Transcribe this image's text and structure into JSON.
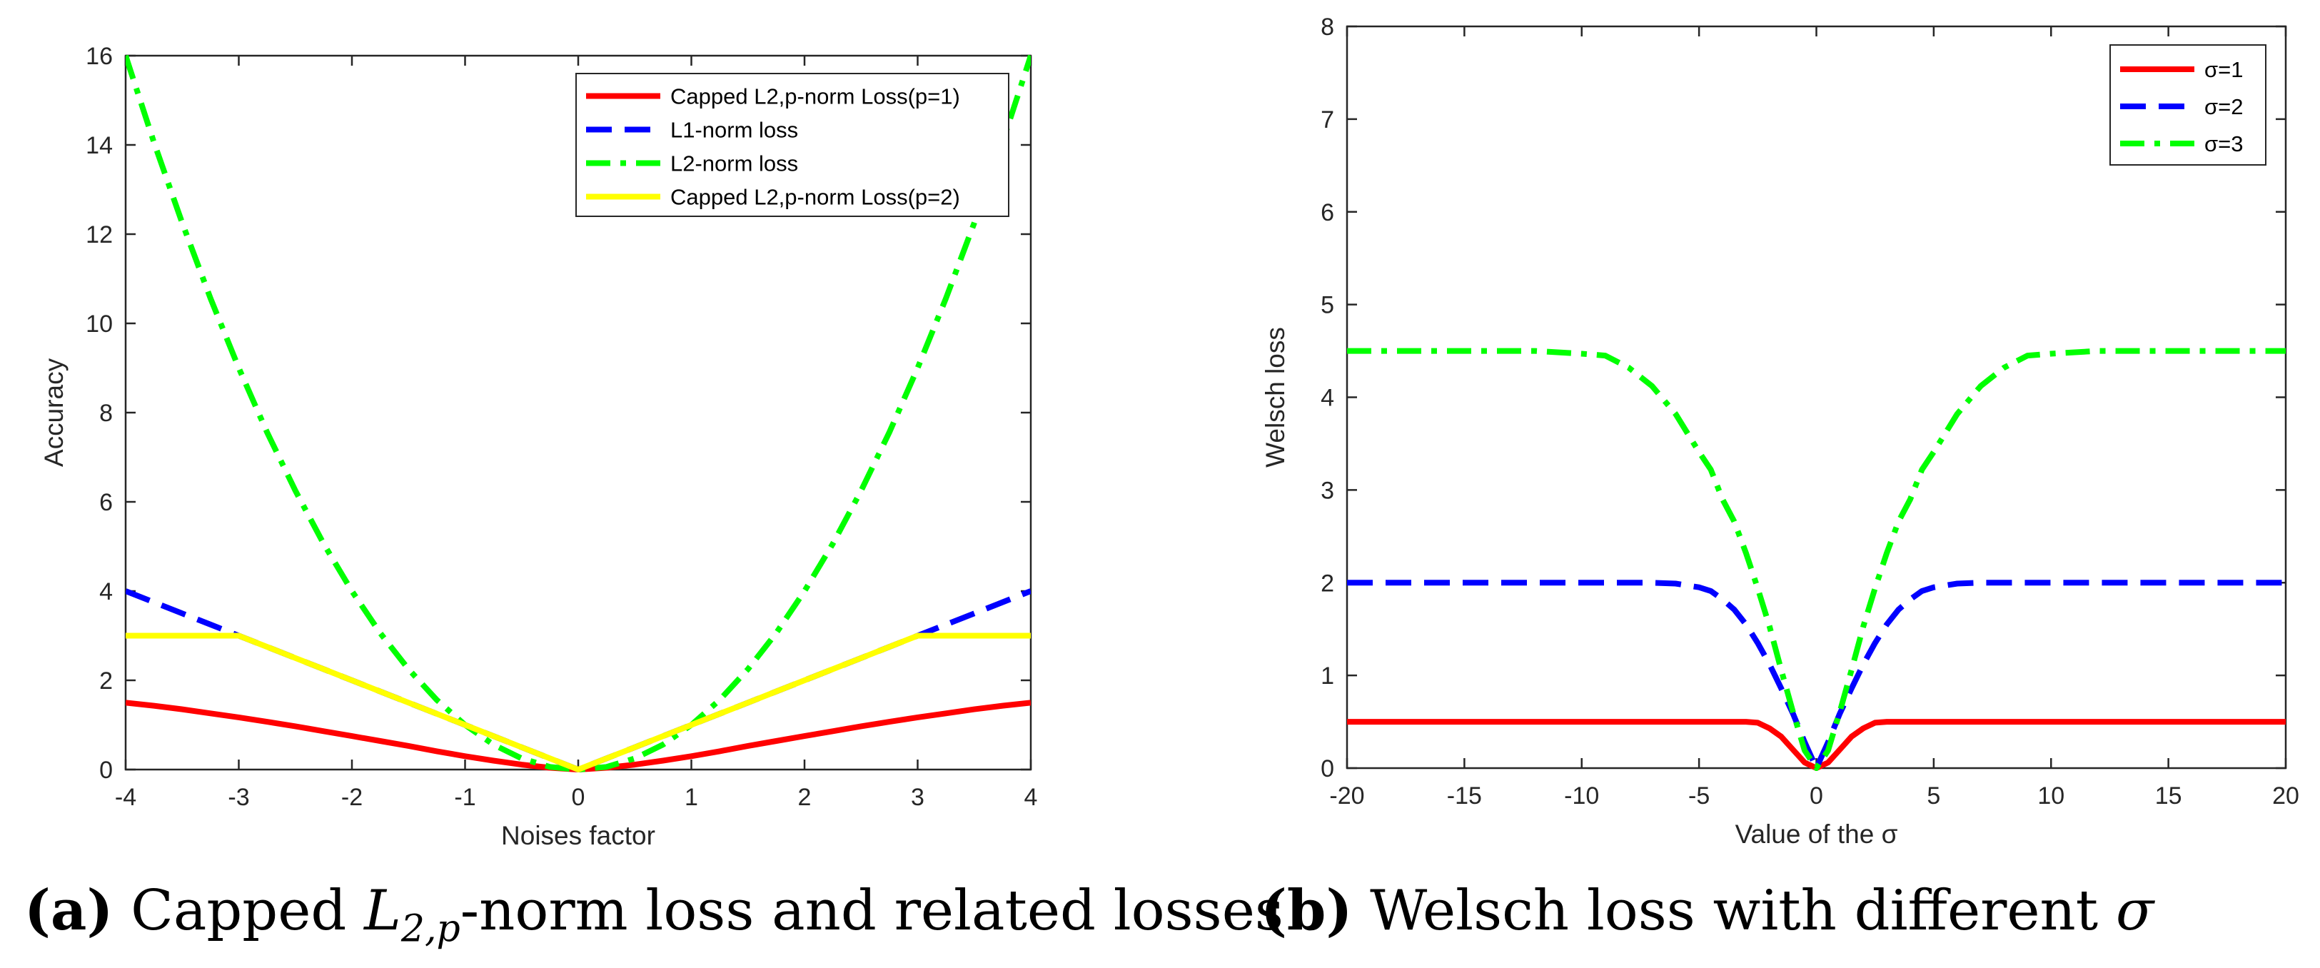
{
  "chart_data": [
    {
      "type": "line",
      "title": "",
      "xlabel": "Noises factor",
      "ylabel": "Accuracy",
      "xlim": [
        -4,
        4
      ],
      "ylim": [
        0,
        16
      ],
      "xticks": [
        -4,
        -3,
        -2,
        -1,
        0,
        1,
        2,
        3,
        4
      ],
      "yticks": [
        0,
        2,
        4,
        6,
        8,
        10,
        12,
        14,
        16
      ],
      "xtick_labels": [
        "-4",
        "-3",
        "-2",
        "-1",
        "0",
        "1",
        "2",
        "3",
        "4"
      ],
      "ytick_labels": [
        "0",
        "2",
        "4",
        "6",
        "8",
        "10",
        "12",
        "14",
        "16"
      ],
      "grid": false,
      "legend_position": "top-right",
      "x": [
        -4,
        -3.75,
        -3.5,
        -3.25,
        -3,
        -2.75,
        -2.5,
        -2.25,
        -2,
        -1.75,
        -1.5,
        -1.25,
        -1,
        -0.75,
        -0.5,
        -0.25,
        0,
        0.25,
        0.5,
        0.75,
        1,
        1.25,
        1.5,
        1.75,
        2,
        2.25,
        2.5,
        2.75,
        3,
        3.25,
        3.5,
        3.75,
        4
      ],
      "series": [
        {
          "name": "Capped L2,p-norm Loss(p=1)",
          "color": "#ff0000",
          "style": "solid",
          "values": [
            1.5,
            1.43,
            1.35,
            1.26,
            1.17,
            1.07,
            0.97,
            0.86,
            0.75,
            0.64,
            0.53,
            0.41,
            0.3,
            0.2,
            0.11,
            0.04,
            0,
            0.04,
            0.11,
            0.2,
            0.3,
            0.41,
            0.53,
            0.64,
            0.75,
            0.86,
            0.97,
            1.07,
            1.17,
            1.26,
            1.35,
            1.43,
            1.5
          ]
        },
        {
          "name": "L1-norm loss",
          "color": "#0000ff",
          "style": "dashed",
          "values": [
            4,
            3.75,
            3.5,
            3.25,
            3,
            2.75,
            2.5,
            2.25,
            2,
            1.75,
            1.5,
            1.25,
            1,
            0.75,
            0.5,
            0.25,
            0,
            0.25,
            0.5,
            0.75,
            1,
            1.25,
            1.5,
            1.75,
            2,
            2.25,
            2.5,
            2.75,
            3,
            3.25,
            3.5,
            3.75,
            4
          ]
        },
        {
          "name": "L2-norm loss",
          "color": "#00ff00",
          "style": "dashdot",
          "values": [
            16,
            14.06,
            12.25,
            10.56,
            9,
            7.56,
            6.25,
            5.06,
            4,
            3.06,
            2.25,
            1.56,
            1,
            0.56,
            0.25,
            0.06,
            0,
            0.06,
            0.25,
            0.56,
            1,
            1.56,
            2.25,
            3.06,
            4,
            5.06,
            6.25,
            7.56,
            9,
            10.56,
            12.25,
            14.06,
            16
          ]
        },
        {
          "name": "Capped L2,p-norm Loss(p=2)",
          "color": "#ffff00",
          "style": "solid",
          "values": [
            3,
            3,
            3,
            3,
            3,
            2.75,
            2.5,
            2.25,
            2,
            1.75,
            1.5,
            1.25,
            1,
            0.75,
            0.5,
            0.25,
            0,
            0.25,
            0.5,
            0.75,
            1,
            1.25,
            1.5,
            1.75,
            2,
            2.25,
            2.5,
            2.75,
            3,
            3,
            3,
            3,
            3
          ]
        }
      ]
    },
    {
      "type": "line",
      "title": "",
      "xlabel": "Value of the σ",
      "ylabel": "Welsch loss",
      "xlim": [
        -20,
        20
      ],
      "ylim": [
        0,
        8
      ],
      "xticks": [
        -20,
        -15,
        -10,
        -5,
        0,
        5,
        10,
        15,
        20
      ],
      "yticks": [
        0,
        1,
        2,
        3,
        4,
        5,
        6,
        7,
        8
      ],
      "xtick_labels": [
        "-20",
        "-15",
        "-10",
        "-5",
        "0",
        "5",
        "10",
        "15",
        "20"
      ],
      "ytick_labels": [
        "0",
        "1",
        "2",
        "3",
        "4",
        "5",
        "6",
        "7",
        "8"
      ],
      "grid": false,
      "legend_position": "top-right",
      "x": [
        -20,
        -18,
        -16,
        -14,
        -12,
        -10,
        -9,
        -8,
        -7,
        -6,
        -5,
        -4.5,
        -4,
        -3.5,
        -3,
        -2.5,
        -2,
        -1.5,
        -1,
        -0.5,
        0,
        0.5,
        1,
        1.5,
        2,
        2.5,
        3,
        3.5,
        4,
        4.5,
        5,
        6,
        7,
        8,
        9,
        10,
        12,
        14,
        16,
        18,
        20
      ],
      "series": [
        {
          "name": "σ=1",
          "color": "#ff0000",
          "style": "solid",
          "values": [
            0.5,
            0.5,
            0.5,
            0.5,
            0.5,
            0.5,
            0.5,
            0.5,
            0.5,
            0.5,
            0.5,
            0.5,
            0.5,
            0.5,
            0.5,
            0.49,
            0.43,
            0.34,
            0.2,
            0.06,
            0,
            0.06,
            0.2,
            0.34,
            0.43,
            0.49,
            0.5,
            0.5,
            0.5,
            0.5,
            0.5,
            0.5,
            0.5,
            0.5,
            0.5,
            0.5,
            0.5,
            0.5,
            0.5,
            0.5,
            0.5
          ]
        },
        {
          "name": "σ=2",
          "color": "#0000ff",
          "style": "dashed",
          "values": [
            2,
            2,
            2,
            2,
            2,
            2,
            2,
            2,
            2,
            1.99,
            1.95,
            1.91,
            1.82,
            1.71,
            1.55,
            1.35,
            1.12,
            0.86,
            0.59,
            0.28,
            0,
            0.28,
            0.59,
            0.86,
            1.12,
            1.35,
            1.55,
            1.71,
            1.82,
            1.91,
            1.95,
            1.99,
            2,
            2,
            2,
            2,
            2,
            2,
            2,
            2,
            2
          ]
        },
        {
          "name": "σ=3",
          "color": "#00ff00",
          "style": "dashdot",
          "values": [
            4.5,
            4.5,
            4.5,
            4.5,
            4.5,
            4.47,
            4.45,
            4.32,
            4.12,
            3.82,
            3.41,
            3.22,
            2.9,
            2.66,
            2.32,
            1.94,
            1.53,
            1.06,
            0.61,
            0.19,
            0,
            0.19,
            0.61,
            1.06,
            1.53,
            1.94,
            2.32,
            2.66,
            2.9,
            3.22,
            3.41,
            3.82,
            4.12,
            4.32,
            4.45,
            4.47,
            4.5,
            4.5,
            4.5,
            4.5,
            4.5
          ]
        }
      ]
    }
  ],
  "captions": [
    {
      "label": "(a)",
      "text_before": " Capped ",
      "math_main": "L",
      "math_sub": "2,p",
      "text_after": "-norm loss and related losses"
    },
    {
      "label": "(b)",
      "text_before": " Welsch loss with different ",
      "math_main": "σ",
      "math_sub": "",
      "text_after": ""
    }
  ]
}
